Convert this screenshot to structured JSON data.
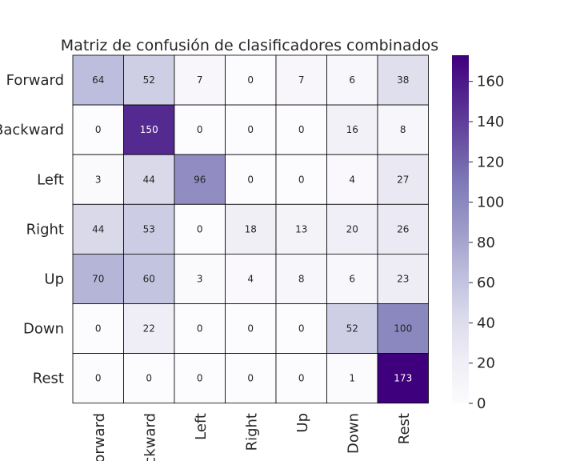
{
  "chart_data": {
    "type": "heatmap",
    "title": "Matriz de confusión de clasificadores combinados",
    "row_labels": [
      "Forward",
      "Backward",
      "Left",
      "Right",
      "Up",
      "Down",
      "Rest"
    ],
    "col_labels": [
      "Forward",
      "Backward",
      "Left",
      "Right",
      "Up",
      "Down",
      "Rest"
    ],
    "values": [
      [
        64,
        52,
        7,
        0,
        7,
        6,
        38
      ],
      [
        0,
        150,
        0,
        0,
        0,
        16,
        8
      ],
      [
        3,
        44,
        96,
        0,
        0,
        4,
        27
      ],
      [
        44,
        53,
        0,
        18,
        13,
        20,
        26
      ],
      [
        70,
        60,
        3,
        4,
        8,
        6,
        23
      ],
      [
        0,
        22,
        0,
        0,
        0,
        52,
        100
      ],
      [
        0,
        0,
        0,
        0,
        0,
        1,
        173
      ]
    ],
    "vmin": 0,
    "vmax": 173,
    "colormap": "Purples",
    "colorbar_ticks": [
      0,
      20,
      40,
      60,
      80,
      100,
      120,
      140,
      160
    ],
    "colors": {
      "low": "#fcfbfd",
      "high": "#3f007d",
      "cell_border": "#000000"
    }
  }
}
